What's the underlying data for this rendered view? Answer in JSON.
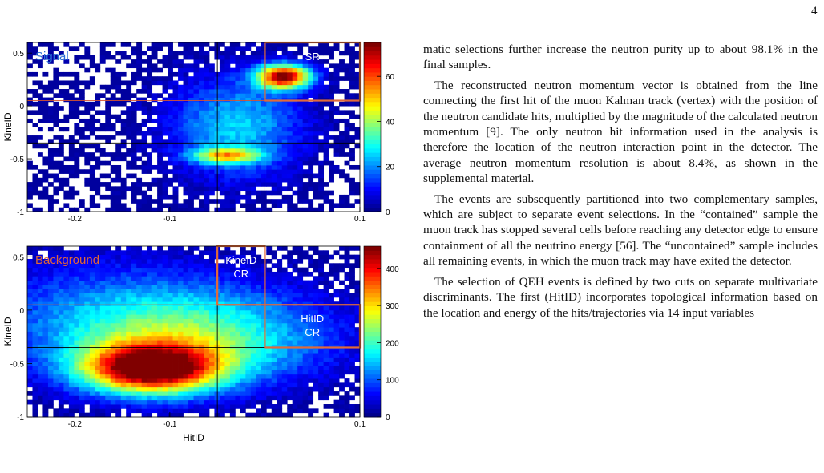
{
  "page_number": "4",
  "paragraphs": [
    "matic selections further increase the neutron purity up to about 98.1% in the final samples.",
    "The reconstructed neutron momentum vector is obtained from the line connecting the first hit of the muon Kalman track (vertex) with the position of the neutron candidate hits, multiplied by the magnitude of the calculated neutron momentum [9]. The only neutron hit information used in the analysis is therefore the location of the neutron interaction point in the detector. The average neutron momentum resolution is about 8.4%, as shown in the supplemental material.",
    "The events are subsequently partitioned into two complementary samples, which are subject to separate event selections. In the “contained” sample the muon track has stopped several cells before reaching any detector edge to ensure containment of all the neutrino energy [56]. The “uncontained” sample includes all remaining events, in which the muon track may have exited the detector.",
    "The selection of QEH events is defined by two cuts on separate multivariate discriminants. The first (HitID) incorporates topological information based on the location and energy of the hits/trajectories via 14 input variables"
  ],
  "chart_data": [
    {
      "type": "heatmap",
      "panel_label": "Signal",
      "xlabel": "",
      "ylabel": "KineID",
      "xlim": [
        -0.25,
        0.1
      ],
      "ylim": [
        -1,
        0.6
      ],
      "x_ticks": [
        "-0.2",
        "-0.1",
        "0.1"
      ],
      "x_tick_values": [
        -0.2,
        -0.1,
        0.1
      ],
      "y_ticks": [
        "0.5",
        "0",
        "-0.5",
        "-1"
      ],
      "y_tick_values": [
        0.5,
        0,
        -0.5,
        -1
      ],
      "colorbar_ticks": [
        "60",
        "40",
        "20",
        "0"
      ],
      "colorbar_tick_values": [
        60,
        40,
        20,
        0
      ],
      "colorbar_max": 75,
      "cut_lines": {
        "x": [
          -0.05,
          0
        ],
        "y": [
          0.05,
          -0.35
        ]
      },
      "regions": [
        {
          "label": "SR",
          "x": [
            0,
            0.1
          ],
          "y": [
            0.05,
            0.6
          ]
        }
      ],
      "hotspots": [
        {
          "x": 0.02,
          "y": 0.28,
          "sx": 0.02,
          "sy": 0.08,
          "w": 1.0
        },
        {
          "x": -0.04,
          "y": -0.47,
          "sx": 0.025,
          "sy": 0.05,
          "w": 0.55
        },
        {
          "x": -0.03,
          "y": -0.2,
          "sx": 0.05,
          "sy": 0.35,
          "w": 0.35
        }
      ]
    },
    {
      "type": "heatmap",
      "panel_label": "Background",
      "xlabel": "HitID",
      "ylabel": "KineID",
      "xlim": [
        -0.25,
        0.1
      ],
      "ylim": [
        -1,
        0.6
      ],
      "x_ticks": [
        "-0.2",
        "-0.1",
        "0.1"
      ],
      "x_tick_values": [
        -0.2,
        -0.1,
        0.1
      ],
      "y_ticks": [
        "0.5",
        "0",
        "-0.5",
        "-1"
      ],
      "y_tick_values": [
        0.5,
        0,
        -0.5,
        -1
      ],
      "colorbar_ticks": [
        "400",
        "300",
        "200",
        "100",
        "0"
      ],
      "colorbar_tick_values": [
        400,
        300,
        200,
        100,
        0
      ],
      "colorbar_max": 460,
      "cut_lines": {
        "x": [
          -0.05,
          0
        ],
        "y": [
          0.05,
          -0.35
        ]
      },
      "regions": [
        {
          "label": "KineID\nCR",
          "x": [
            -0.05,
            0
          ],
          "y": [
            0.05,
            0.6
          ]
        },
        {
          "label": "HitID\nCR",
          "x": [
            0,
            0.1
          ],
          "y": [
            -0.35,
            0.05
          ]
        }
      ],
      "hotspots": [
        {
          "x": -0.12,
          "y": -0.55,
          "sx": 0.05,
          "sy": 0.16,
          "w": 1.0
        },
        {
          "x": -0.08,
          "y": -0.3,
          "sx": 0.1,
          "sy": 0.3,
          "w": 0.45
        },
        {
          "x": -0.15,
          "y": 0.05,
          "sx": 0.12,
          "sy": 0.35,
          "w": 0.2
        }
      ]
    }
  ]
}
